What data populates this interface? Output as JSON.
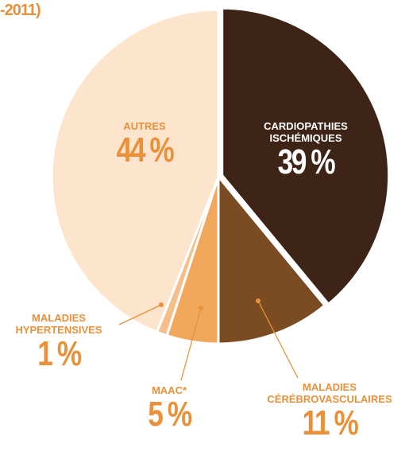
{
  "chart_data": {
    "type": "pie",
    "title": "-2011)",
    "categories": [
      "CARDIOPATHIES ISCHÉMIQUES",
      "MALADIES CÉRÉBROVASCULAIRES",
      "MAAC*",
      "MALADIES HYPERTENSIVES",
      "AUTRES"
    ],
    "values": [
      39,
      11,
      5,
      1,
      44
    ],
    "value_labels": [
      "39 %",
      "11 %",
      "5 %",
      "1 %",
      "44 %"
    ],
    "colors": [
      "#3e2416",
      "#7b4b22",
      "#f1a75c",
      "#f5bf8c",
      "#fde4cd"
    ]
  }
}
